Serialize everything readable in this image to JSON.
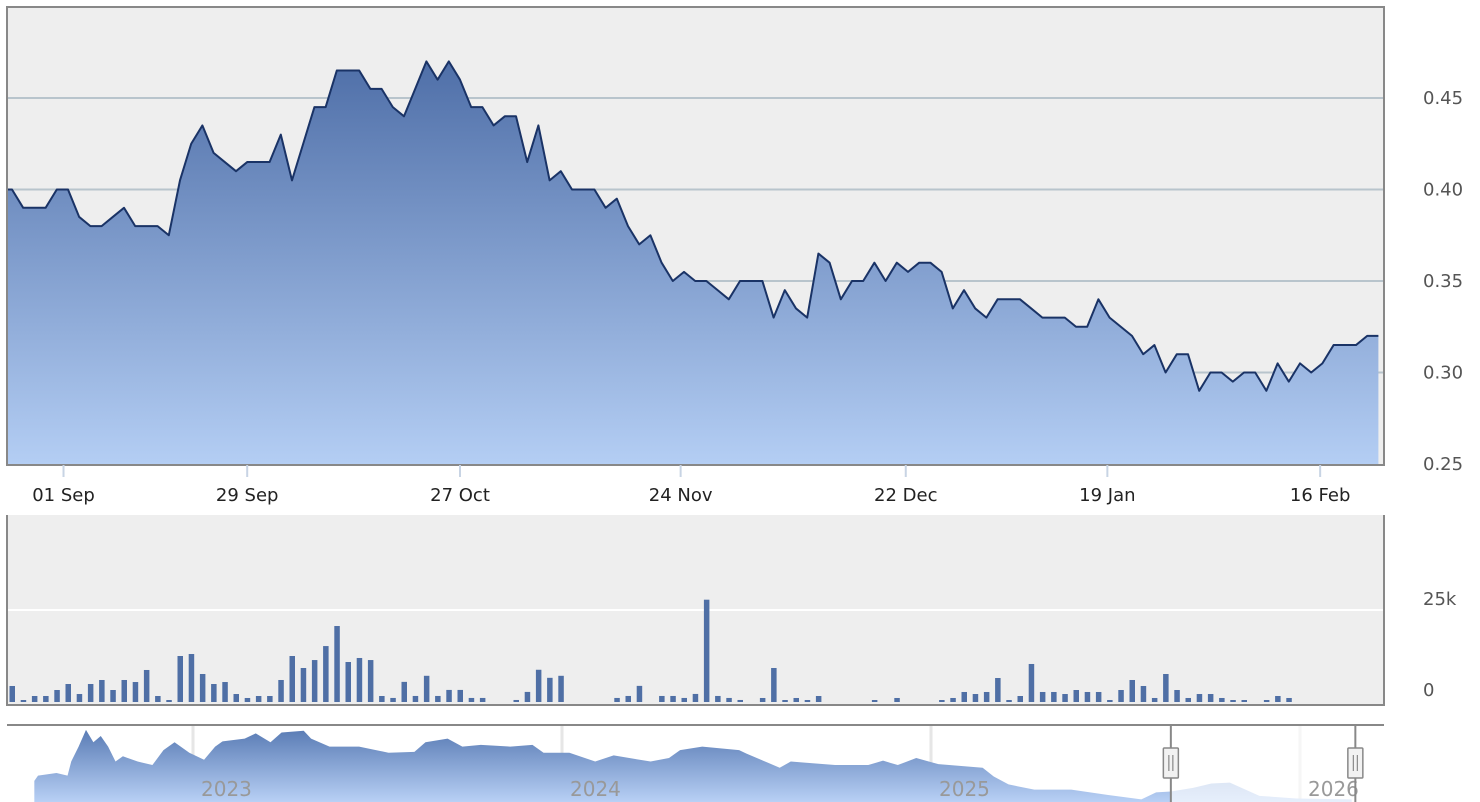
{
  "chart_data": [
    {
      "type": "area",
      "pane": "price",
      "ylim": [
        0.25,
        0.5
      ],
      "y_ticks": [
        "0.25",
        "0.30",
        "0.35",
        "0.40",
        "0.45"
      ],
      "y_tick_values": [
        0.25,
        0.3,
        0.35,
        0.4,
        0.45
      ],
      "grid": true,
      "x_ticks": [
        {
          "label": "01 Sep",
          "index": 4.6
        },
        {
          "label": "29 Sep",
          "index": 21
        },
        {
          "label": "27 Oct",
          "index": 40
        },
        {
          "label": "24 Nov",
          "index": 59.7
        },
        {
          "label": "22 Dec",
          "index": 79.8
        },
        {
          "label": "19 Jan",
          "index": 97.8
        },
        {
          "label": "16 Feb",
          "index": 116.8
        }
      ],
      "values": [
        0.4,
        0.39,
        0.39,
        0.39,
        0.4,
        0.4,
        0.385,
        0.38,
        0.38,
        0.385,
        0.39,
        0.38,
        0.38,
        0.38,
        0.375,
        0.405,
        0.425,
        0.435,
        0.42,
        0.415,
        0.41,
        0.415,
        0.415,
        0.415,
        0.43,
        0.405,
        0.425,
        0.445,
        0.445,
        0.465,
        0.465,
        0.465,
        0.455,
        0.455,
        0.445,
        0.44,
        0.455,
        0.47,
        0.46,
        0.47,
        0.46,
        0.445,
        0.445,
        0.435,
        0.44,
        0.44,
        0.415,
        0.435,
        0.405,
        0.41,
        0.4,
        0.4,
        0.4,
        0.39,
        0.395,
        0.38,
        0.37,
        0.375,
        0.36,
        0.35,
        0.355,
        0.35,
        0.35,
        0.345,
        0.34,
        0.35,
        0.35,
        0.35,
        0.33,
        0.345,
        0.335,
        0.33,
        0.365,
        0.36,
        0.34,
        0.35,
        0.35,
        0.36,
        0.35,
        0.36,
        0.355,
        0.36,
        0.36,
        0.355,
        0.335,
        0.345,
        0.335,
        0.33,
        0.34,
        0.34,
        0.34,
        0.335,
        0.33,
        0.33,
        0.33,
        0.325,
        0.325,
        0.34,
        0.33,
        0.325,
        0.32,
        0.31,
        0.315,
        0.3,
        0.31,
        0.31,
        0.29,
        0.3,
        0.3,
        0.295,
        0.3,
        0.3,
        0.29,
        0.305,
        0.295,
        0.305,
        0.3,
        0.305,
        0.315,
        0.315,
        0.315,
        0.32,
        0.32
      ],
      "colors": {
        "line": "#1a3366",
        "fill_top": "#4f6fa8",
        "fill_bottom": "#b4cef4",
        "plot_bg": "#eeeeee",
        "grid": "#b8c4cc"
      }
    },
    {
      "type": "bar",
      "pane": "volume",
      "ylim": [
        0,
        30000
      ],
      "y_ticks": [
        "0",
        "25k"
      ],
      "y_tick_values": [
        0,
        25000
      ],
      "grid": true,
      "values": [
        4350,
        540,
        1630,
        1630,
        3260,
        4890,
        2170,
        4890,
        5980,
        3260,
        5980,
        5430,
        8700,
        1630,
        540,
        12500,
        13040,
        7610,
        4890,
        5430,
        2170,
        1090,
        1630,
        1630,
        5980,
        12500,
        9240,
        11400,
        15200,
        20650,
        10870,
        11960,
        11400,
        1630,
        1100,
        5470,
        1640,
        7120,
        1640,
        3280,
        3280,
        1100,
        1100,
        0,
        0,
        550,
        2740,
        8760,
        6570,
        7120,
        0,
        0,
        0,
        0,
        1100,
        1640,
        4380,
        0,
        1640,
        1640,
        1100,
        2190,
        27800,
        1640,
        1100,
        550,
        0,
        1090,
        9240,
        540,
        1090,
        540,
        1630,
        0,
        0,
        0,
        0,
        540,
        0,
        1090,
        0,
        0,
        0,
        540,
        1090,
        2720,
        2170,
        2720,
        6520,
        540,
        1630,
        10330,
        2720,
        2720,
        2170,
        3260,
        2720,
        2720,
        540,
        3260,
        5980,
        4350,
        1090,
        7610,
        3260,
        1090,
        2170,
        2170,
        1090,
        540,
        540,
        0,
        540,
        1630,
        1090,
        0,
        0,
        0,
        0,
        0,
        0,
        0,
        0
      ],
      "colors": {
        "bar": "#4f6fa5"
      }
    },
    {
      "type": "area",
      "pane": "navigator",
      "x_ticks": [
        "2023",
        "2024",
        "2025",
        "2026"
      ],
      "x_tick_values": [
        2023,
        2024,
        2025,
        2026
      ],
      "selected_range": [
        2025.65,
        2026.15
      ],
      "points": [
        [
          2022.57,
          0.49
        ],
        [
          2022.58,
          0.55
        ],
        [
          2022.63,
          0.58
        ],
        [
          2022.66,
          0.55
        ],
        [
          2022.67,
          0.71
        ],
        [
          2022.69,
          0.88
        ],
        [
          2022.71,
          1.07
        ],
        [
          2022.73,
          0.93
        ],
        [
          2022.75,
          1.0
        ],
        [
          2022.77,
          0.88
        ],
        [
          2022.79,
          0.71
        ],
        [
          2022.81,
          0.77
        ],
        [
          2022.85,
          0.71
        ],
        [
          2022.89,
          0.67
        ],
        [
          2022.92,
          0.84
        ],
        [
          2022.95,
          0.93
        ],
        [
          2022.99,
          0.81
        ],
        [
          2023.03,
          0.73
        ],
        [
          2023.06,
          0.88
        ],
        [
          2023.08,
          0.94
        ],
        [
          2023.14,
          0.97
        ],
        [
          2023.17,
          1.03
        ],
        [
          2023.21,
          0.93
        ],
        [
          2023.24,
          1.04
        ],
        [
          2023.3,
          1.06
        ],
        [
          2023.32,
          0.97
        ],
        [
          2023.37,
          0.88
        ],
        [
          2023.45,
          0.88
        ],
        [
          2023.53,
          0.81
        ],
        [
          2023.6,
          0.82
        ],
        [
          2023.63,
          0.93
        ],
        [
          2023.69,
          0.97
        ],
        [
          2023.73,
          0.88
        ],
        [
          2023.78,
          0.9
        ],
        [
          2023.86,
          0.88
        ],
        [
          2023.92,
          0.9
        ],
        [
          2023.95,
          0.81
        ],
        [
          2024.02,
          0.81
        ],
        [
          2024.09,
          0.71
        ],
        [
          2024.14,
          0.78
        ],
        [
          2024.24,
          0.71
        ],
        [
          2024.29,
          0.75
        ],
        [
          2024.32,
          0.84
        ],
        [
          2024.38,
          0.88
        ],
        [
          2024.48,
          0.84
        ],
        [
          2024.5,
          0.8
        ],
        [
          2024.59,
          0.64
        ],
        [
          2024.62,
          0.71
        ],
        [
          2024.74,
          0.67
        ],
        [
          2024.83,
          0.67
        ],
        [
          2024.87,
          0.72
        ],
        [
          2024.91,
          0.67
        ],
        [
          2024.96,
          0.75
        ],
        [
          2025.02,
          0.68
        ],
        [
          2025.14,
          0.64
        ],
        [
          2025.17,
          0.54
        ],
        [
          2025.21,
          0.45
        ],
        [
          2025.28,
          0.39
        ],
        [
          2025.38,
          0.39
        ],
        [
          2025.48,
          0.33
        ],
        [
          2025.57,
          0.28
        ],
        [
          2025.61,
          0.36
        ],
        [
          2025.65,
          0.37
        ],
        [
          2025.71,
          0.41
        ],
        [
          2025.76,
          0.46
        ],
        [
          2025.81,
          0.47
        ],
        [
          2025.89,
          0.32
        ],
        [
          2025.99,
          0.29
        ],
        [
          2026.14,
          0.28
        ]
      ],
      "colors": {
        "fill_top": "#5a7cb5",
        "fill_bottom": "#b8d0f5",
        "mask": "#ffffff",
        "handle": "#f2f2f2"
      }
    }
  ]
}
